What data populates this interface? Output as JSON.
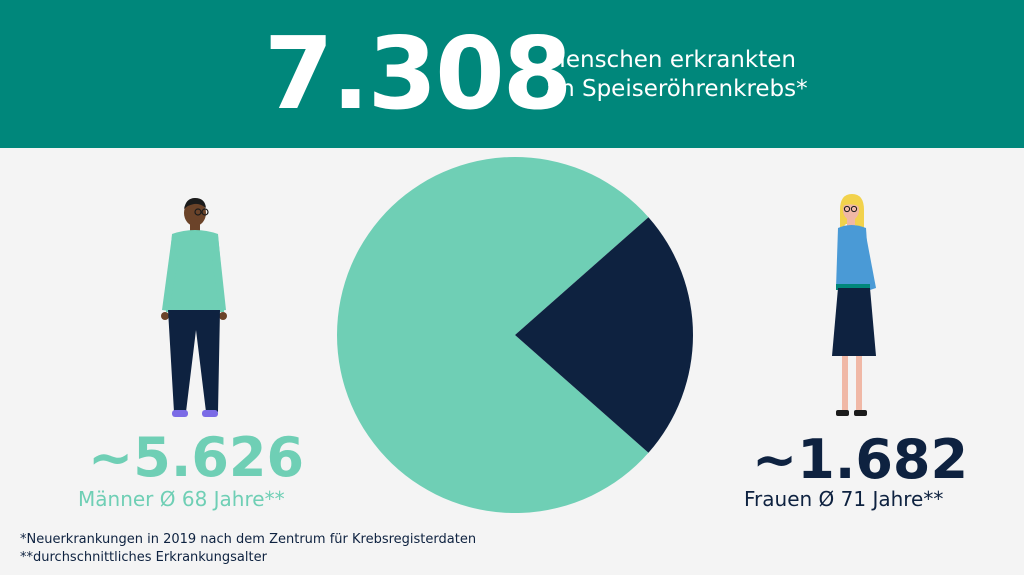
{
  "header": {
    "total": "7.308",
    "line1": "Menschen erkrankten",
    "line2": "an Speiseröhrenkrebs*"
  },
  "colors": {
    "header_bg": "#00877b",
    "mint": "#6fcfb5",
    "navy": "#0e2240",
    "background": "#f4f4f4"
  },
  "men": {
    "count": "~5.626",
    "label": "Männer Ø 68 Jahre**"
  },
  "women": {
    "count": "~1.682",
    "label": "Frauen Ø 71 Jahre**"
  },
  "footnotes": [
    "*Neuerkrankungen in 2019 nach dem Zentrum für Krebsregisterdaten",
    "**durchschnittliches Erkrankungsalter"
  ],
  "chart_data": {
    "type": "pie",
    "title": "7.308 Menschen erkrankten an Speiseröhrenkrebs*",
    "categories": [
      "Männer",
      "Frauen"
    ],
    "values": [
      5626,
      1682
    ],
    "colors": [
      "#6fcfb5",
      "#0e2240"
    ]
  }
}
